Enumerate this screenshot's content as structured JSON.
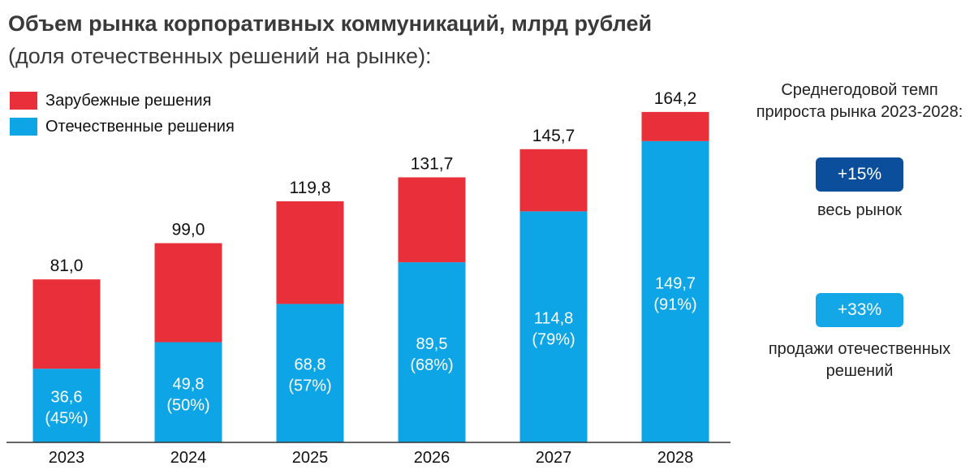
{
  "title": "Объем рынка корпоративных коммуникаций, млрд рублей",
  "subtitle": "(доля отечественных решений на рынке):",
  "colors": {
    "foreign": "#e9303a",
    "domestic": "#0ea5e6",
    "badge_total": "#0b4f9c",
    "badge_domestic": "#14a7e7"
  },
  "chart_data": {
    "type": "bar",
    "stacked": true,
    "categories": [
      "2023",
      "2024",
      "2025",
      "2026",
      "2027",
      "2028"
    ],
    "series": [
      {
        "name": "Отечественные решения",
        "values": [
          36.6,
          49.8,
          68.8,
          89.5,
          114.8,
          149.7
        ],
        "labels": [
          "36,6",
          "49,8",
          "68,8",
          "89,5",
          "114,8",
          "149,7"
        ],
        "share_labels": [
          "(45%)",
          "(50%)",
          "(57%)",
          "(68%)",
          "(79%)",
          "(91%)"
        ]
      },
      {
        "name": "Зарубежные решения",
        "values": [
          44.4,
          49.2,
          51.0,
          42.2,
          30.9,
          14.5
        ]
      }
    ],
    "totals": [
      81.0,
      99.0,
      119.8,
      131.7,
      145.7,
      164.2
    ],
    "total_labels": [
      "81,0",
      "99,0",
      "119,8",
      "131,7",
      "145,7",
      "164,2"
    ],
    "ylim": [
      0,
      175
    ],
    "grid": false,
    "legend": "top-left"
  },
  "side": {
    "title_line1": "Среднегодовой темп",
    "title_line2": "прироста рынка 2023-2028:",
    "badge_total": "+15%",
    "caption_total": "весь рынок",
    "badge_domestic": "+33%",
    "caption_domestic_line1": "продажи отечественных",
    "caption_domestic_line2": "решений"
  }
}
